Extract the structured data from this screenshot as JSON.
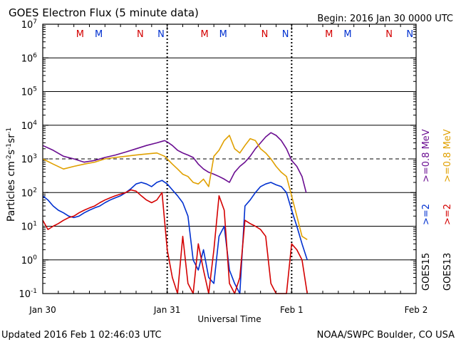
{
  "chart_data": {
    "type": "line",
    "title": "GOES Electron Flux (5 minute data)",
    "begin_label": "Begin: 2016 Jan 30 0000 UTC",
    "xlabel": "Universal Time",
    "ylabel": "Particles cm⁻²s⁻¹sr⁻¹",
    "ylabel_parts": {
      "base": "Particles cm",
      "e1": "-2",
      "mid1": "s",
      "e2": "-1",
      "mid2": "sr",
      "e3": "-1"
    },
    "y_scale": "log",
    "ylim": [
      0.1,
      10000000
    ],
    "y_ticks": [
      {
        "value": 0.1,
        "exp": "-1"
      },
      {
        "value": 1,
        "exp": "0"
      },
      {
        "value": 10,
        "exp": "1"
      },
      {
        "value": 100,
        "exp": "2"
      },
      {
        "value": 1000,
        "exp": "3"
      },
      {
        "value": 10000,
        "exp": "4"
      },
      {
        "value": 100000,
        "exp": "5"
      },
      {
        "value": 1000000,
        "exp": "6"
      },
      {
        "value": 10000000,
        "exp": "7"
      }
    ],
    "xlim_hours": [
      0,
      72
    ],
    "x_ticks": [
      {
        "hour": 0,
        "label": "Jan 30"
      },
      {
        "hour": 24,
        "label": "Jan 31"
      },
      {
        "hour": 48,
        "label": "Feb 1"
      },
      {
        "hour": 72,
        "label": "Feb 2"
      }
    ],
    "threshold_value": 1000,
    "day_boundaries_hours": [
      24,
      48
    ],
    "markers": [
      {
        "hour": 7.2,
        "letter": "M",
        "color": "#d40000"
      },
      {
        "hour": 10.8,
        "letter": "M",
        "color": "#0030d0"
      },
      {
        "hour": 18.8,
        "letter": "N",
        "color": "#d40000"
      },
      {
        "hour": 22.8,
        "letter": "N",
        "color": "#0030d0"
      },
      {
        "hour": 31.2,
        "letter": "M",
        "color": "#d40000"
      },
      {
        "hour": 34.8,
        "letter": "M",
        "color": "#0030d0"
      },
      {
        "hour": 42.8,
        "letter": "N",
        "color": "#d40000"
      },
      {
        "hour": 46.8,
        "letter": "N",
        "color": "#0030d0"
      },
      {
        "hour": 55.2,
        "letter": "M",
        "color": "#d40000"
      },
      {
        "hour": 58.8,
        "letter": "M",
        "color": "#0030d0"
      },
      {
        "hour": 66.8,
        "letter": "N",
        "color": "#d40000"
      },
      {
        "hour": 70.8,
        "letter": "N",
        "color": "#0030d0"
      }
    ],
    "legend": [
      {
        "label": "GOES15",
        "color": "#000000"
      },
      {
        "label": ">=2",
        "color": "#0030d0"
      },
      {
        "label": ">=0.8 MeV",
        "color": "#6a0d91"
      },
      {
        "label": "GOES13",
        "color": "#000000"
      },
      {
        "label": ">=2",
        "color": "#d40000"
      },
      {
        "label": ">=0.8 MeV",
        "color": "#e0a000"
      }
    ],
    "series": [
      {
        "satellite": "GOES15",
        "energy": ">=0.8 MeV",
        "color": "#6a0d91",
        "x": [
          0,
          2,
          4,
          6,
          8,
          10,
          12,
          14,
          16,
          18,
          20,
          22,
          23.5,
          24,
          25,
          26,
          27,
          28,
          29,
          30,
          31,
          32,
          33,
          34,
          35,
          36,
          37,
          38,
          39,
          40,
          41,
          42,
          43,
          44,
          45,
          46,
          47,
          48,
          49,
          50,
          50.8
        ],
        "y": [
          2500,
          1800,
          1200,
          1000,
          800,
          900,
          1100,
          1300,
          1600,
          2000,
          2500,
          3000,
          3500,
          3200,
          2500,
          1800,
          1500,
          1300,
          1100,
          700,
          500,
          400,
          350,
          300,
          250,
          200,
          400,
          600,
          800,
          1200,
          2000,
          3000,
          4500,
          6000,
          5000,
          3500,
          2000,
          900,
          600,
          300,
          100
        ]
      },
      {
        "satellite": "GOES13",
        "energy": ">=0.8 MeV",
        "color": "#e0a000",
        "x": [
          0,
          2,
          4,
          6,
          8,
          10,
          12,
          14,
          16,
          18,
          20,
          22,
          23.5,
          24,
          25,
          26,
          27,
          28,
          29,
          30,
          31,
          32,
          33,
          34,
          35,
          36,
          37,
          38,
          39,
          40,
          41,
          42,
          43,
          44,
          45,
          46,
          47,
          48,
          49,
          50,
          51
        ],
        "y": [
          1000,
          700,
          500,
          600,
          700,
          800,
          1000,
          1100,
          1200,
          1300,
          1400,
          1500,
          1200,
          1000,
          700,
          500,
          350,
          300,
          200,
          180,
          250,
          150,
          1200,
          1800,
          3500,
          5000,
          2000,
          1500,
          2500,
          4000,
          3500,
          2000,
          1500,
          1000,
          600,
          400,
          300,
          80,
          20,
          5,
          4
        ]
      },
      {
        "satellite": "GOES15",
        "energy": ">=2 MeV",
        "color": "#0030d0",
        "x": [
          0,
          1,
          2,
          3,
          4,
          5,
          6,
          7,
          8,
          9,
          10,
          11,
          12,
          13,
          14,
          15,
          16,
          17,
          18,
          19,
          20,
          21,
          22,
          23,
          24,
          25,
          26,
          27,
          28,
          29,
          30,
          31,
          32,
          33,
          34,
          35,
          36,
          37,
          38,
          39,
          40,
          41,
          42,
          43,
          44,
          45,
          46,
          47,
          48,
          49,
          50,
          51
        ],
        "y": [
          80,
          60,
          40,
          30,
          25,
          20,
          18,
          20,
          25,
          30,
          35,
          40,
          50,
          60,
          70,
          80,
          100,
          130,
          180,
          200,
          180,
          150,
          200,
          230,
          180,
          120,
          80,
          50,
          20,
          1,
          0.5,
          2,
          0.3,
          0.2,
          5,
          10,
          0.5,
          0.2,
          0.1,
          40,
          60,
          100,
          150,
          180,
          200,
          170,
          150,
          100,
          30,
          10,
          3,
          1
        ]
      },
      {
        "satellite": "GOES13",
        "energy": ">=2 MeV",
        "color": "#d40000",
        "x": [
          0,
          1,
          2,
          3,
          4,
          5,
          6,
          7,
          8,
          9,
          10,
          11,
          12,
          13,
          14,
          15,
          16,
          17,
          18,
          19,
          20,
          21,
          22,
          23,
          24,
          25,
          26,
          27,
          28,
          29,
          30,
          31,
          32,
          33,
          34,
          35,
          36,
          37,
          38,
          39,
          40,
          41,
          42,
          43,
          44,
          45,
          46,
          47,
          48,
          49,
          50,
          51
        ],
        "y": [
          15,
          8,
          10,
          12,
          15,
          18,
          20,
          25,
          30,
          35,
          40,
          50,
          60,
          70,
          80,
          90,
          100,
          120,
          110,
          80,
          60,
          50,
          60,
          100,
          2,
          0.3,
          0.1,
          5,
          0.2,
          0.1,
          3,
          0.5,
          0.1,
          2,
          80,
          30,
          0.2,
          0.1,
          0.3,
          15,
          12,
          10,
          8,
          5,
          0.2,
          0.1,
          0.1,
          0.1,
          3,
          2,
          1,
          0.1
        ]
      }
    ]
  },
  "footer": {
    "updated": "Updated 2016 Feb  1 02:46:03 UTC",
    "source": "NOAA/SWPC Boulder, CO USA"
  }
}
